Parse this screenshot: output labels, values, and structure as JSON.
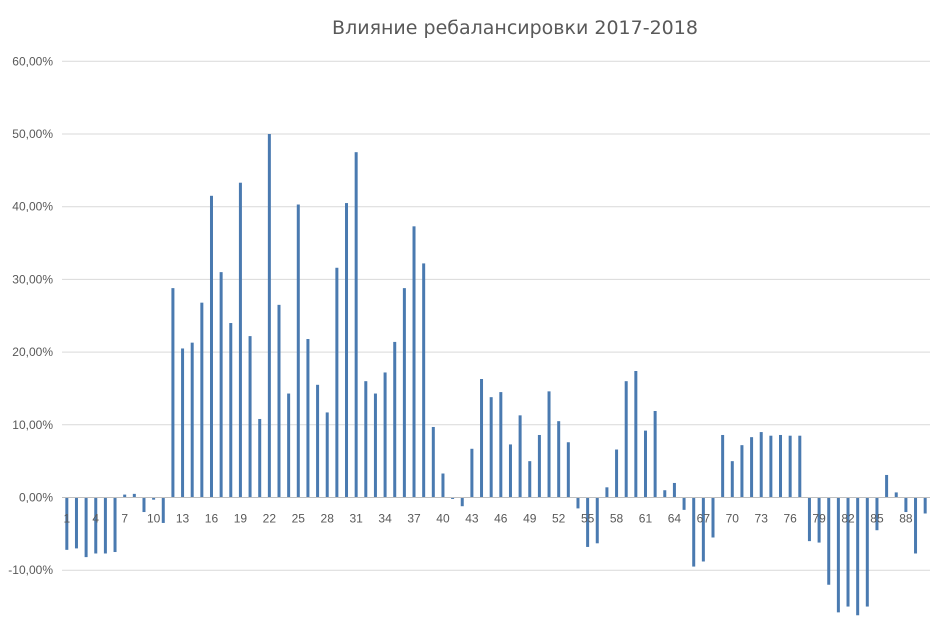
{
  "chart_data": {
    "type": "bar",
    "title": "Влияние ребалансировки 2017-2018",
    "xlabel": "",
    "ylabel": "",
    "ylim": [
      -0.16,
      0.6
    ],
    "y_ticks": [
      "60,00%",
      "50,00%",
      "40,00%",
      "30,00%",
      "20,00%",
      "10,00%",
      "0,00%",
      "-10,00%"
    ],
    "y_tick_values": [
      0.6,
      0.5,
      0.4,
      0.3,
      0.2,
      0.1,
      0.0,
      -0.1
    ],
    "grid": true,
    "legend": "none",
    "bar_color": "#4a7ab0",
    "categories": [
      1,
      2,
      3,
      4,
      5,
      6,
      7,
      8,
      9,
      10,
      11,
      12,
      13,
      14,
      15,
      16,
      17,
      18,
      19,
      20,
      21,
      22,
      23,
      24,
      25,
      26,
      27,
      28,
      29,
      30,
      31,
      32,
      33,
      34,
      35,
      36,
      37,
      38,
      39,
      40,
      41,
      42,
      43,
      44,
      45,
      46,
      47,
      48,
      49,
      50,
      51,
      52,
      53,
      54,
      55,
      56,
      57,
      58,
      59,
      60,
      61,
      62,
      63,
      64,
      65,
      66,
      67,
      68,
      69,
      70,
      71,
      72,
      73,
      74,
      75,
      76,
      77,
      78,
      79,
      80,
      81,
      82,
      83,
      84,
      85,
      86,
      87,
      88,
      89,
      90
    ],
    "x_tick_labels": [
      "1",
      "4",
      "7",
      "10",
      "13",
      "16",
      "19",
      "22",
      "25",
      "28",
      "31",
      "34",
      "37",
      "40",
      "43",
      "46",
      "49",
      "52",
      "55",
      "58",
      "61",
      "64",
      "67",
      "70",
      "73",
      "76",
      "79",
      "82",
      "85",
      "88"
    ],
    "x_tick_categories": [
      1,
      4,
      7,
      10,
      13,
      16,
      19,
      22,
      25,
      28,
      31,
      34,
      37,
      40,
      43,
      46,
      49,
      52,
      55,
      58,
      61,
      64,
      67,
      70,
      73,
      76,
      79,
      82,
      85,
      88
    ],
    "values": [
      -0.072,
      -0.07,
      -0.082,
      -0.077,
      -0.077,
      -0.075,
      0.004,
      0.005,
      -0.02,
      -0.003,
      -0.035,
      0.288,
      0.205,
      0.213,
      0.268,
      0.415,
      0.31,
      0.24,
      0.433,
      0.222,
      0.108,
      0.5,
      0.265,
      0.143,
      0.403,
      0.218,
      0.155,
      0.117,
      0.316,
      0.405,
      0.475,
      0.16,
      0.143,
      0.172,
      0.214,
      0.288,
      0.373,
      0.322,
      0.097,
      0.033,
      -0.002,
      -0.012,
      0.067,
      0.163,
      0.138,
      0.145,
      0.073,
      0.113,
      0.05,
      0.086,
      0.146,
      0.105,
      0.076,
      -0.015,
      -0.068,
      -0.063,
      0.014,
      0.066,
      0.16,
      0.174,
      0.092,
      0.119,
      0.01,
      0.02,
      -0.017,
      -0.095,
      -0.088,
      -0.055,
      0.086,
      0.05,
      0.072,
      0.083,
      0.09,
      0.085,
      0.086,
      0.085,
      0.085,
      -0.06,
      -0.062,
      -0.12,
      -0.158,
      -0.15,
      -0.162,
      -0.15,
      -0.045,
      0.031,
      0.007,
      -0.02,
      -0.077,
      -0.022
    ]
  }
}
